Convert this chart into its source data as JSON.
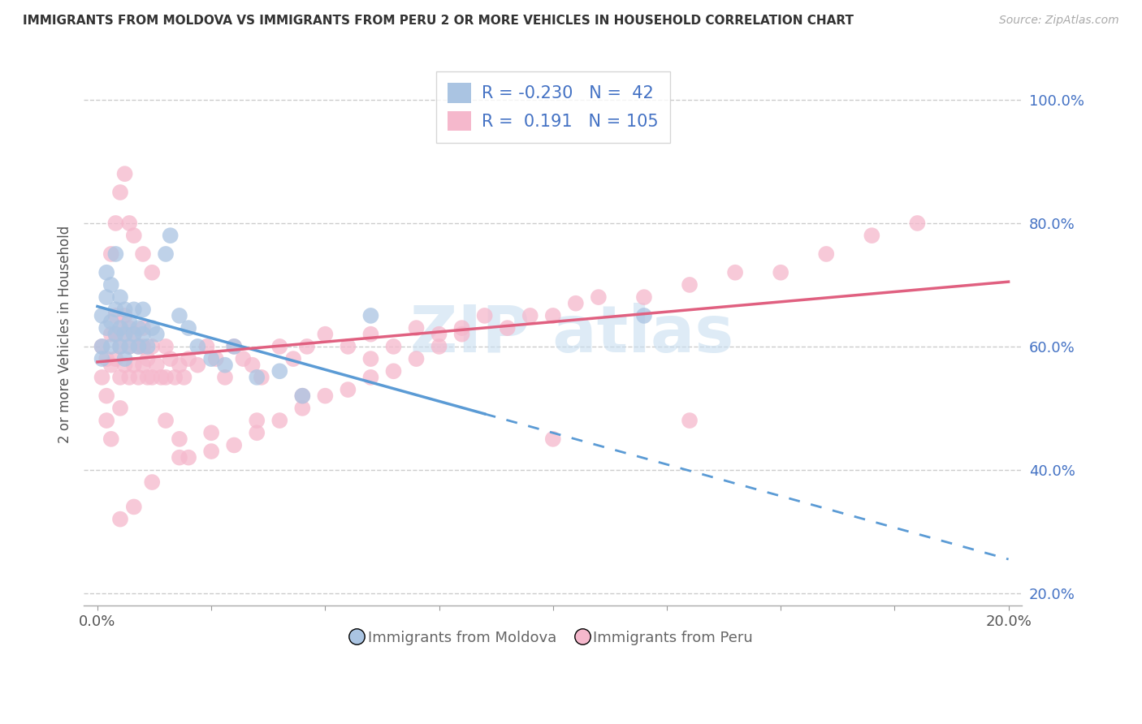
{
  "title": "IMMIGRANTS FROM MOLDOVA VS IMMIGRANTS FROM PERU 2 OR MORE VEHICLES IN HOUSEHOLD CORRELATION CHART",
  "source": "Source: ZipAtlas.com",
  "ylabel": "2 or more Vehicles in Household",
  "xaxis_label_moldova": "Immigrants from Moldova",
  "xaxis_label_peru": "Immigrants from Peru",
  "moldova_color": "#aac4e2",
  "peru_color": "#f5b8cc",
  "moldova_line_color": "#5b9bd5",
  "peru_line_color": "#e06080",
  "moldova_R": -0.23,
  "moldova_N": 42,
  "peru_R": 0.191,
  "peru_N": 105,
  "background_color": "#ffffff",
  "moldova_scatter_x": [
    0.001,
    0.001,
    0.001,
    0.002,
    0.002,
    0.002,
    0.003,
    0.003,
    0.003,
    0.004,
    0.004,
    0.004,
    0.005,
    0.005,
    0.005,
    0.006,
    0.006,
    0.006,
    0.007,
    0.007,
    0.008,
    0.008,
    0.009,
    0.009,
    0.01,
    0.01,
    0.011,
    0.012,
    0.013,
    0.015,
    0.016,
    0.018,
    0.02,
    0.022,
    0.025,
    0.028,
    0.03,
    0.035,
    0.04,
    0.045,
    0.06,
    0.12
  ],
  "moldova_scatter_y": [
    0.6,
    0.65,
    0.58,
    0.63,
    0.68,
    0.72,
    0.6,
    0.64,
    0.7,
    0.62,
    0.66,
    0.75,
    0.6,
    0.63,
    0.68,
    0.58,
    0.62,
    0.66,
    0.6,
    0.64,
    0.62,
    0.66,
    0.6,
    0.63,
    0.62,
    0.66,
    0.6,
    0.63,
    0.62,
    0.75,
    0.78,
    0.65,
    0.63,
    0.6,
    0.58,
    0.57,
    0.6,
    0.55,
    0.56,
    0.52,
    0.65,
    0.65
  ],
  "peru_scatter_x": [
    0.001,
    0.001,
    0.002,
    0.002,
    0.002,
    0.003,
    0.003,
    0.003,
    0.004,
    0.004,
    0.004,
    0.005,
    0.005,
    0.005,
    0.005,
    0.006,
    0.006,
    0.006,
    0.007,
    0.007,
    0.007,
    0.008,
    0.008,
    0.009,
    0.009,
    0.01,
    0.01,
    0.01,
    0.011,
    0.011,
    0.012,
    0.012,
    0.013,
    0.014,
    0.015,
    0.015,
    0.016,
    0.017,
    0.018,
    0.019,
    0.02,
    0.022,
    0.024,
    0.026,
    0.028,
    0.03,
    0.032,
    0.034,
    0.036,
    0.04,
    0.043,
    0.046,
    0.05,
    0.055,
    0.06,
    0.065,
    0.07,
    0.075,
    0.08,
    0.085,
    0.09,
    0.095,
    0.1,
    0.105,
    0.11,
    0.12,
    0.13,
    0.14,
    0.15,
    0.16,
    0.17,
    0.18,
    0.003,
    0.004,
    0.005,
    0.006,
    0.007,
    0.008,
    0.01,
    0.012,
    0.015,
    0.018,
    0.02,
    0.025,
    0.03,
    0.035,
    0.04,
    0.045,
    0.05,
    0.055,
    0.06,
    0.065,
    0.07,
    0.075,
    0.005,
    0.008,
    0.012,
    0.018,
    0.025,
    0.035,
    0.045,
    0.06,
    0.08,
    0.1,
    0.13
  ],
  "peru_scatter_y": [
    0.6,
    0.55,
    0.58,
    0.52,
    0.48,
    0.62,
    0.57,
    0.45,
    0.58,
    0.62,
    0.65,
    0.55,
    0.6,
    0.63,
    0.5,
    0.57,
    0.62,
    0.65,
    0.55,
    0.6,
    0.63,
    0.57,
    0.62,
    0.55,
    0.6,
    0.57,
    0.6,
    0.63,
    0.55,
    0.58,
    0.55,
    0.6,
    0.57,
    0.55,
    0.55,
    0.6,
    0.58,
    0.55,
    0.57,
    0.55,
    0.58,
    0.57,
    0.6,
    0.58,
    0.55,
    0.6,
    0.58,
    0.57,
    0.55,
    0.6,
    0.58,
    0.6,
    0.62,
    0.6,
    0.62,
    0.6,
    0.63,
    0.62,
    0.63,
    0.65,
    0.63,
    0.65,
    0.65,
    0.67,
    0.68,
    0.68,
    0.7,
    0.72,
    0.72,
    0.75,
    0.78,
    0.8,
    0.75,
    0.8,
    0.85,
    0.88,
    0.8,
    0.78,
    0.75,
    0.72,
    0.48,
    0.45,
    0.42,
    0.43,
    0.44,
    0.46,
    0.48,
    0.5,
    0.52,
    0.53,
    0.55,
    0.56,
    0.58,
    0.6,
    0.32,
    0.34,
    0.38,
    0.42,
    0.46,
    0.48,
    0.52,
    0.58,
    0.62,
    0.45,
    0.48
  ]
}
